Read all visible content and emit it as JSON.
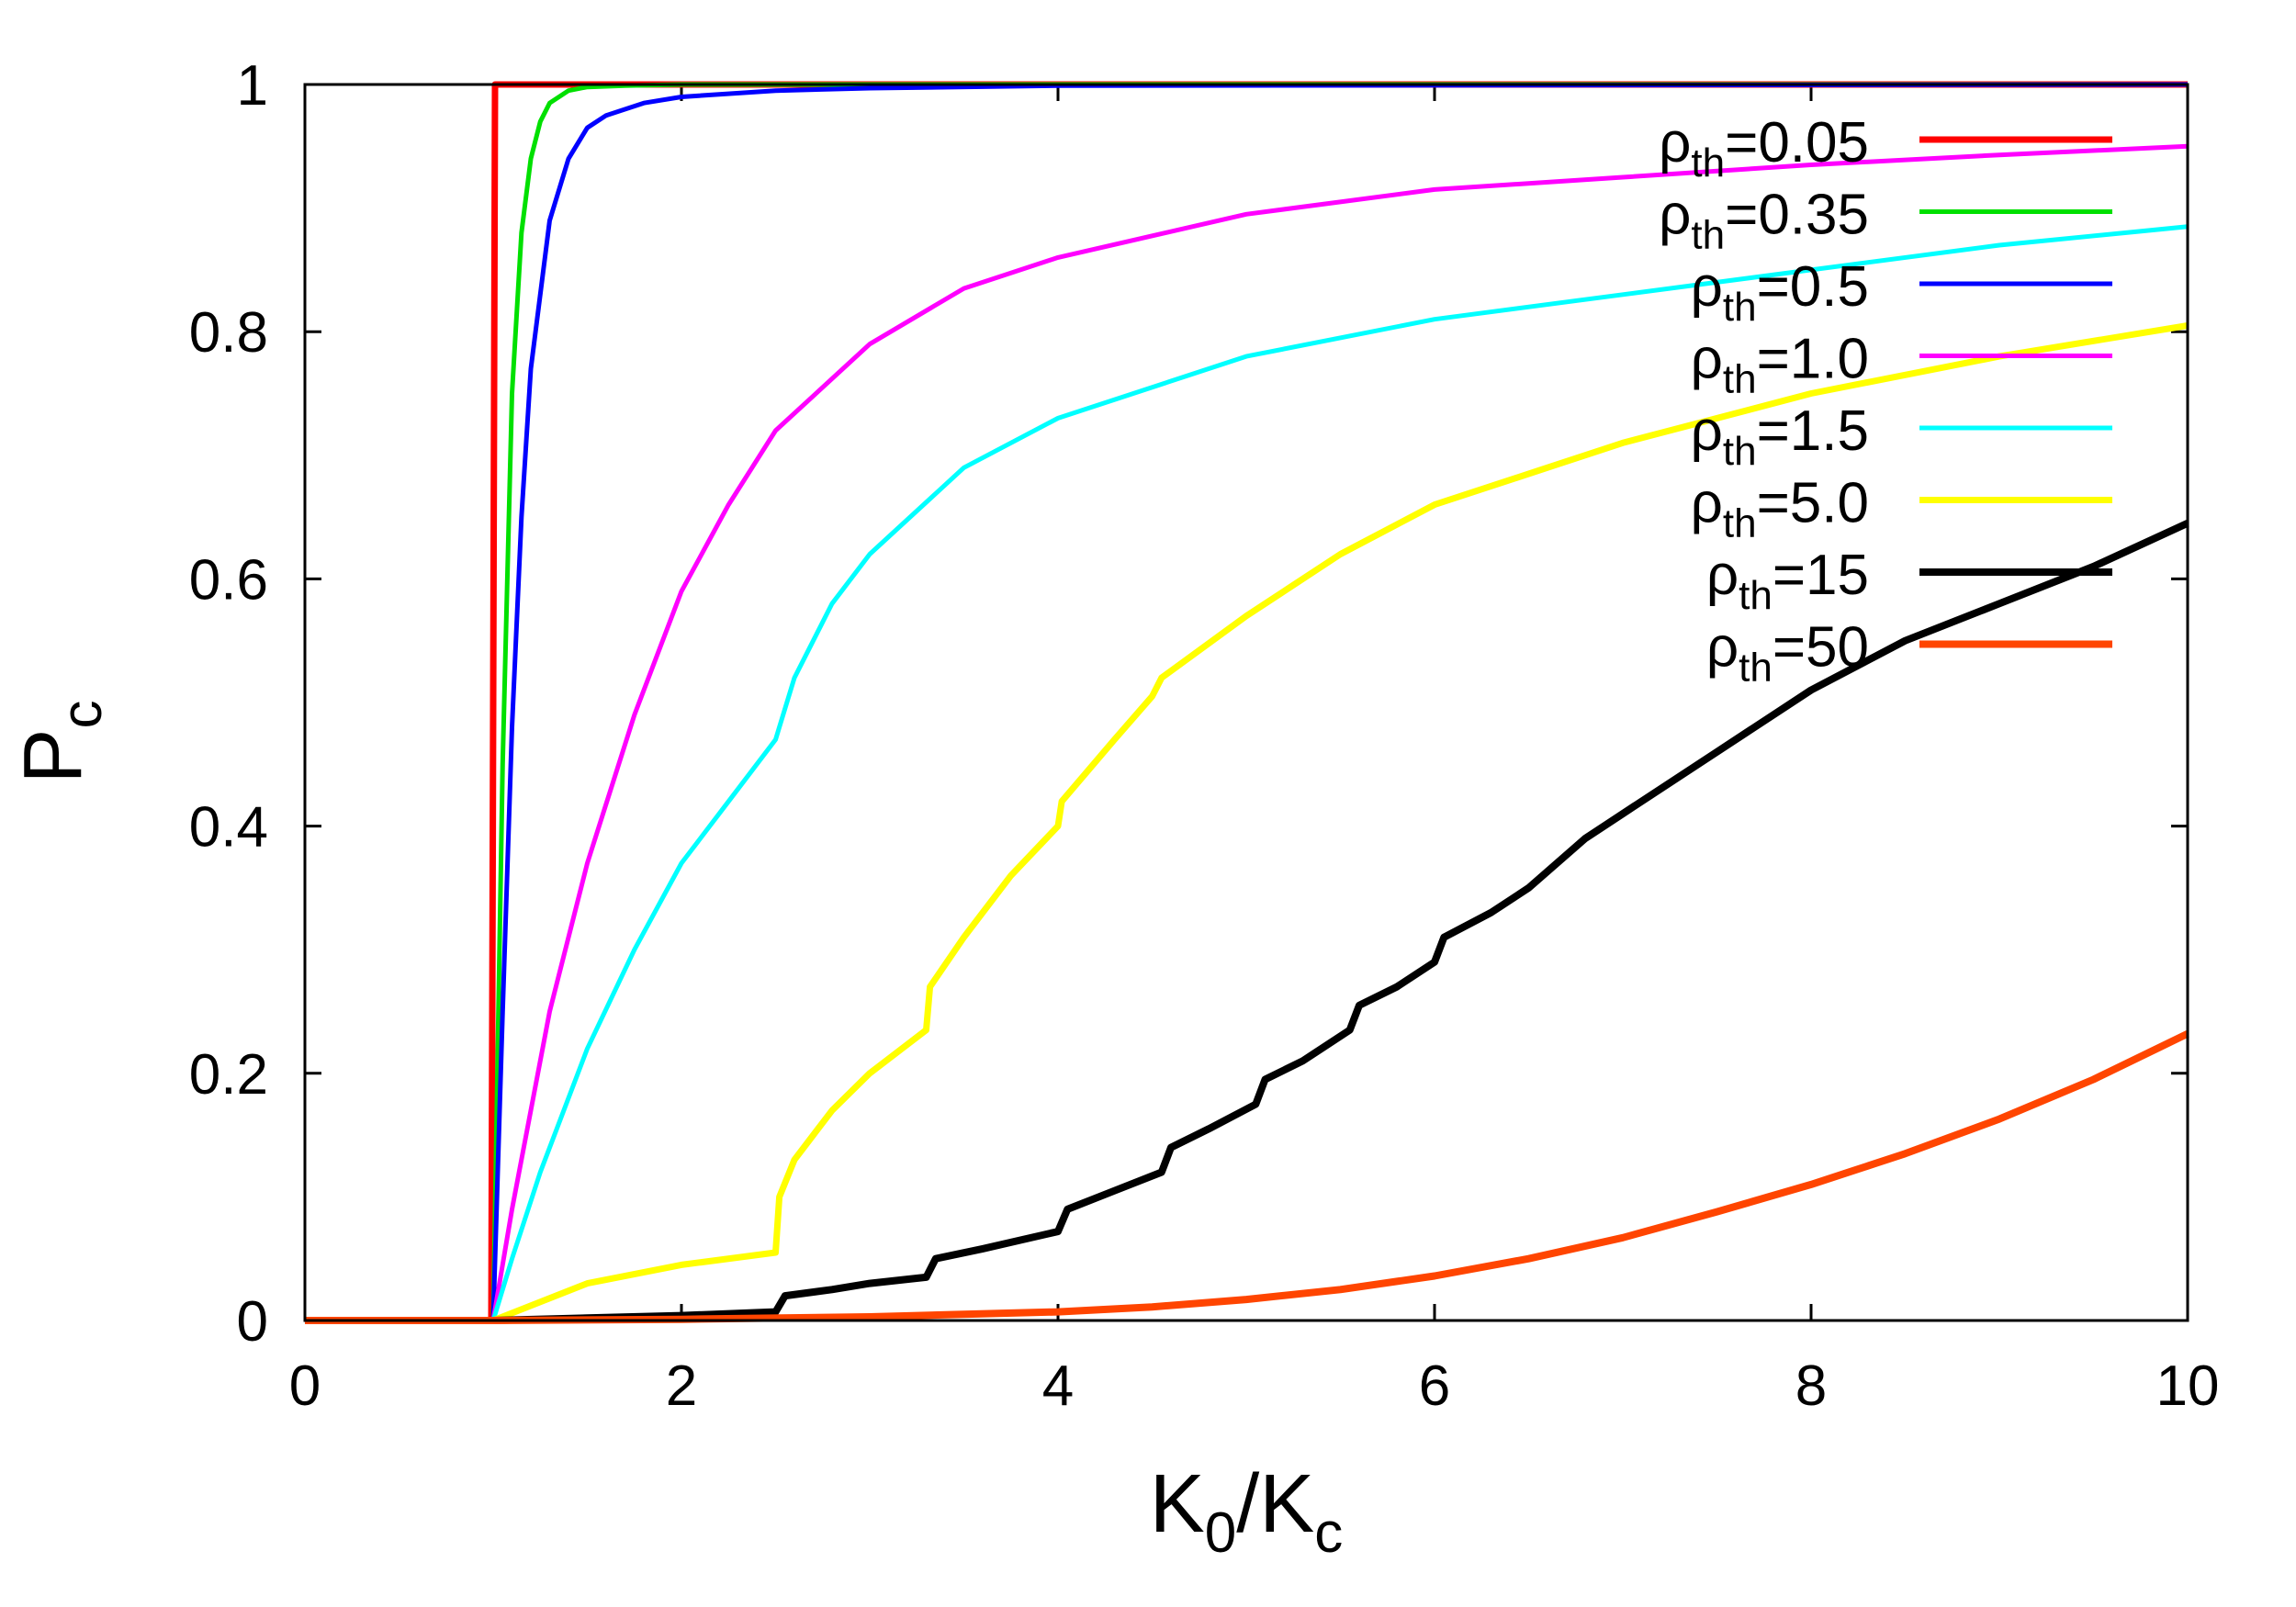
{
  "chart_data": {
    "type": "line",
    "title": "",
    "xlabel": {
      "main": "K",
      "sub1": "0",
      "sep": "/K",
      "sub2": "c"
    },
    "ylabel": {
      "main": "P",
      "sub": "c"
    },
    "xlim": [
      0,
      10
    ],
    "ylim": [
      0,
      1
    ],
    "xticks": [
      0,
      2,
      4,
      6,
      8,
      10
    ],
    "yticks": [
      0,
      0.2,
      0.4,
      0.6,
      0.8,
      1
    ],
    "xtick_labels": [
      "0",
      "2",
      "4",
      "6",
      "8",
      "10"
    ],
    "ytick_labels": [
      "0",
      "0.2",
      "0.4",
      "0.6",
      "0.8",
      "1"
    ],
    "legend_position": "top-right",
    "series": [
      {
        "name": "ρth=0.05",
        "symbol": "ρ",
        "sub": "th",
        "value": "=0.05",
        "color": "#ff0000",
        "width": 7,
        "x": [
          0,
          0.99,
          1.0,
          1.01,
          10
        ],
        "y": [
          0,
          0,
          0.5,
          1.0,
          1.0
        ]
      },
      {
        "name": "ρth=0.35",
        "symbol": "ρ",
        "sub": "th",
        "value": "=0.35",
        "color": "#00e000",
        "width": 5,
        "x": [
          0,
          1.0,
          1.05,
          1.1,
          1.15,
          1.2,
          1.25,
          1.3,
          1.4,
          1.5,
          1.7,
          2.0,
          10
        ],
        "y": [
          0,
          0,
          0.45,
          0.75,
          0.88,
          0.94,
          0.97,
          0.985,
          0.995,
          0.998,
          0.999,
          1.0,
          1.0
        ]
      },
      {
        "name": "ρth=0.5",
        "symbol": "ρ",
        "sub": "th",
        "value": "=0.5",
        "color": "#0000ff",
        "width": 5,
        "x": [
          0,
          1.0,
          1.05,
          1.1,
          1.15,
          1.2,
          1.3,
          1.4,
          1.5,
          1.6,
          1.8,
          2.0,
          2.5,
          3.0,
          4.0,
          10
        ],
        "y": [
          0,
          0,
          0.25,
          0.48,
          0.65,
          0.77,
          0.89,
          0.94,
          0.965,
          0.975,
          0.985,
          0.99,
          0.995,
          0.997,
          0.999,
          1.0
        ]
      },
      {
        "name": "ρth=1.0",
        "symbol": "ρ",
        "sub": "th",
        "value": "=1.0",
        "color": "#ff00ff",
        "width": 5,
        "x": [
          1.0,
          1.1,
          1.2,
          1.3,
          1.5,
          1.75,
          2.0,
          2.25,
          2.5,
          3.0,
          3.5,
          4.0,
          5.0,
          6.0,
          7.0,
          8.0,
          9.0,
          10.0
        ],
        "y": [
          0,
          0.09,
          0.17,
          0.25,
          0.37,
          0.49,
          0.59,
          0.66,
          0.72,
          0.79,
          0.835,
          0.86,
          0.895,
          0.915,
          0.925,
          0.935,
          0.943,
          0.95
        ]
      },
      {
        "name": "ρth=1.5",
        "symbol": "ρ",
        "sub": "th",
        "value": "=1.5",
        "color": "#00ffff",
        "width": 5,
        "x": [
          1.0,
          1.1,
          1.25,
          1.5,
          1.75,
          2.0,
          2.25,
          2.5,
          2.52,
          2.6,
          2.8,
          3.0,
          3.5,
          4.0,
          5.0,
          6.0,
          7.0,
          8.0,
          9.0,
          10.0
        ],
        "y": [
          0,
          0.05,
          0.12,
          0.22,
          0.3,
          0.37,
          0.42,
          0.47,
          0.48,
          0.52,
          0.58,
          0.62,
          0.69,
          0.73,
          0.78,
          0.81,
          0.83,
          0.85,
          0.87,
          0.885
        ]
      },
      {
        "name": "ρth=5.0",
        "symbol": "ρ",
        "sub": "th",
        "value": "=5.0",
        "color": "#ffff00",
        "width": 7,
        "x": [
          1.0,
          1.5,
          2.0,
          2.5,
          2.52,
          2.6,
          2.8,
          3.0,
          3.3,
          3.32,
          3.5,
          3.75,
          4.0,
          4.02,
          4.3,
          4.5,
          4.55,
          5.0,
          5.5,
          6.0,
          7.0,
          8.0,
          9.0,
          10.0
        ],
        "y": [
          0,
          0.03,
          0.045,
          0.055,
          0.1,
          0.13,
          0.17,
          0.2,
          0.235,
          0.27,
          0.31,
          0.36,
          0.4,
          0.42,
          0.47,
          0.505,
          0.52,
          0.57,
          0.62,
          0.66,
          0.71,
          0.75,
          0.78,
          0.805
        ]
      },
      {
        "name": "ρth=15",
        "symbol": "ρ",
        "sub": "th",
        "value": "=15",
        "color": "#000000",
        "width": 8,
        "x": [
          0,
          1.0,
          1.5,
          2.0,
          2.5,
          2.55,
          2.8,
          3.0,
          3.3,
          3.35,
          3.6,
          3.8,
          4.0,
          4.05,
          4.3,
          4.55,
          4.6,
          4.8,
          5.05,
          5.1,
          5.3,
          5.55,
          5.6,
          5.8,
          6.0,
          6.05,
          6.3,
          6.5,
          6.8,
          7.0,
          7.5,
          8.0,
          8.5,
          9.0,
          9.5,
          10.0
        ],
        "y": [
          0,
          0,
          0.002,
          0.004,
          0.007,
          0.02,
          0.025,
          0.03,
          0.035,
          0.05,
          0.058,
          0.065,
          0.072,
          0.09,
          0.105,
          0.12,
          0.14,
          0.155,
          0.175,
          0.195,
          0.21,
          0.235,
          0.255,
          0.27,
          0.29,
          0.31,
          0.33,
          0.35,
          0.39,
          0.41,
          0.46,
          0.51,
          0.55,
          0.58,
          0.61,
          0.645
        ]
      },
      {
        "name": "ρth=50",
        "symbol": "ρ",
        "sub": "th",
        "value": "=50",
        "color": "#ff4500",
        "width": 8,
        "x": [
          0,
          1.0,
          2.0,
          3.0,
          4.0,
          4.5,
          5.0,
          5.5,
          6.0,
          6.5,
          7.0,
          7.5,
          8.0,
          8.5,
          9.0,
          9.5,
          10.0
        ],
        "y": [
          0,
          0,
          0.001,
          0.003,
          0.007,
          0.011,
          0.017,
          0.025,
          0.036,
          0.05,
          0.067,
          0.088,
          0.11,
          0.135,
          0.163,
          0.195,
          0.232
        ]
      }
    ]
  }
}
